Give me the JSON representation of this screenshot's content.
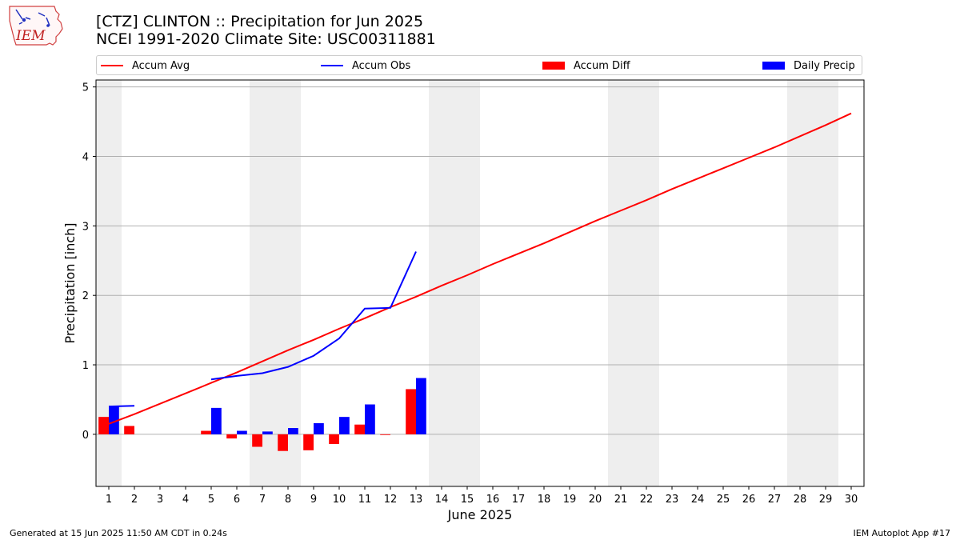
{
  "header": {
    "logo_text": "IEM",
    "title": "[CTZ] CLINTON :: Precipitation for Jun 2025",
    "subtitle": "NCEI 1991-2020 Climate Site: USC00311881"
  },
  "legend": {
    "items": [
      {
        "label": "Accum Avg",
        "kind": "line",
        "color": "#ff0000"
      },
      {
        "label": "Accum Obs",
        "kind": "line",
        "color": "#0000ff"
      },
      {
        "label": "Accum Diff",
        "kind": "box",
        "color": "#ff0000"
      },
      {
        "label": "Daily Precip",
        "kind": "box",
        "color": "#0000ff"
      }
    ]
  },
  "footer": {
    "left": "Generated at 15 Jun 2025 11:50 AM CDT in 0.24s",
    "right": "IEM Autoplot App #17"
  },
  "chart_data": {
    "type": "bar",
    "xlabel": "June 2025",
    "ylabel": "Precipitation [inch]",
    "xlim": [
      0.5,
      30.5
    ],
    "ylim": [
      -0.75,
      5.1
    ],
    "yticks": [
      0,
      1,
      2,
      3,
      4,
      5
    ],
    "xticks": [
      1,
      2,
      3,
      4,
      5,
      6,
      7,
      8,
      9,
      10,
      11,
      12,
      13,
      14,
      15,
      16,
      17,
      18,
      19,
      20,
      21,
      22,
      23,
      24,
      25,
      26,
      27,
      28,
      29,
      30
    ],
    "grid": "y",
    "weekend_shading": [
      [
        0.5,
        1.5
      ],
      [
        6.5,
        8.5
      ],
      [
        13.5,
        15.5
      ],
      [
        20.5,
        22.5
      ],
      [
        27.5,
        29.5
      ]
    ],
    "legend_placement": "top, above plot",
    "series": [
      {
        "name": "Accum Avg",
        "kind": "line",
        "color": "#ff0000",
        "x": [
          1,
          2,
          3,
          4,
          5,
          6,
          7,
          8,
          9,
          10,
          11,
          12,
          13,
          14,
          15,
          16,
          17,
          18,
          19,
          20,
          21,
          22,
          23,
          24,
          25,
          26,
          27,
          28,
          29,
          30
        ],
        "values": [
          0.15,
          0.29,
          0.44,
          0.59,
          0.74,
          0.89,
          1.05,
          1.21,
          1.36,
          1.52,
          1.67,
          1.83,
          1.98,
          2.14,
          2.29,
          2.45,
          2.6,
          2.75,
          2.91,
          3.07,
          3.22,
          3.37,
          3.53,
          3.68,
          3.83,
          3.98,
          4.13,
          4.29,
          4.45,
          4.62
        ]
      },
      {
        "name": "Accum Obs",
        "kind": "line",
        "color": "#0000ff",
        "segments": [
          {
            "x": [
              1,
              2
            ],
            "values": [
              0.4,
              0.41
            ]
          },
          {
            "x": [
              5,
              6,
              7,
              8,
              9,
              10,
              11,
              12,
              13
            ],
            "values": [
              0.79,
              0.84,
              0.88,
              0.97,
              1.13,
              1.38,
              1.81,
              1.82,
              2.63
            ]
          }
        ]
      },
      {
        "name": "Accum Diff",
        "kind": "bar",
        "color": "#ff0000",
        "x": [
          1,
          2,
          5,
          6,
          7,
          8,
          9,
          10,
          11,
          12,
          13
        ],
        "values": [
          0.25,
          0.12,
          0.05,
          -0.06,
          -0.18,
          -0.24,
          -0.23,
          -0.14,
          0.14,
          -0.01,
          0.65
        ]
      },
      {
        "name": "Daily Precip",
        "kind": "bar",
        "color": "#0000ff",
        "x": [
          1,
          5,
          6,
          7,
          8,
          9,
          10,
          11,
          13
        ],
        "values": [
          0.4,
          0.38,
          0.05,
          0.04,
          0.09,
          0.16,
          0.25,
          0.43,
          0.81
        ]
      }
    ]
  }
}
